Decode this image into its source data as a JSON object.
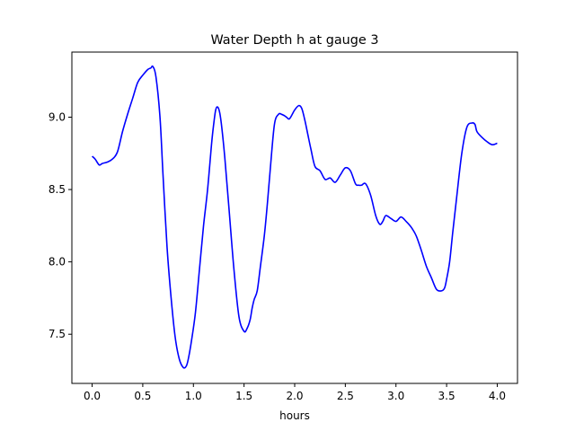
{
  "chart_data": {
    "type": "line",
    "title": "Water Depth h at gauge 3",
    "xlabel": "hours",
    "ylabel": "",
    "xlim": [
      -0.2,
      4.2
    ],
    "ylim": [
      7.16,
      9.45
    ],
    "xticks": [
      0.0,
      0.5,
      1.0,
      1.5,
      2.0,
      2.5,
      3.0,
      3.5,
      4.0
    ],
    "xtick_labels": [
      "0.0",
      "0.5",
      "1.0",
      "1.5",
      "2.0",
      "2.5",
      "3.0",
      "3.5",
      "4.0"
    ],
    "yticks": [
      7.5,
      8.0,
      8.5,
      9.0
    ],
    "ytick_labels": [
      "7.5",
      "8.0",
      "8.5",
      "9.0"
    ],
    "grid": false,
    "series": [
      {
        "color": "#0000ff",
        "x": [
          0.0,
          0.03,
          0.07,
          0.1,
          0.15,
          0.2,
          0.25,
          0.3,
          0.35,
          0.4,
          0.45,
          0.5,
          0.55,
          0.58,
          0.6,
          0.63,
          0.67,
          0.7,
          0.74,
          0.78,
          0.82,
          0.86,
          0.9,
          0.93,
          0.95,
          0.98,
          1.02,
          1.06,
          1.1,
          1.14,
          1.18,
          1.2,
          1.22,
          1.24,
          1.26,
          1.28,
          1.31,
          1.35,
          1.4,
          1.45,
          1.5,
          1.53,
          1.56,
          1.58,
          1.6,
          1.63,
          1.66,
          1.7,
          1.73,
          1.76,
          1.8,
          1.84,
          1.87,
          1.9,
          1.92,
          1.95,
          2.0,
          2.04,
          2.07,
          2.1,
          2.13,
          2.16,
          2.2,
          2.25,
          2.3,
          2.35,
          2.4,
          2.45,
          2.5,
          2.55,
          2.6,
          2.63,
          2.66,
          2.7,
          2.75,
          2.8,
          2.84,
          2.87,
          2.9,
          2.95,
          3.0,
          3.05,
          3.1,
          3.15,
          3.2,
          3.25,
          3.3,
          3.35,
          3.4,
          3.45,
          3.48,
          3.5,
          3.53,
          3.56,
          3.6,
          3.65,
          3.7,
          3.75,
          3.78,
          3.8,
          3.85,
          3.9,
          3.95,
          4.0
        ],
        "y": [
          8.73,
          8.71,
          8.67,
          8.68,
          8.69,
          8.71,
          8.76,
          8.9,
          9.02,
          9.13,
          9.24,
          9.29,
          9.33,
          9.34,
          9.35,
          9.28,
          9.0,
          8.6,
          8.1,
          7.75,
          7.48,
          7.33,
          7.27,
          7.28,
          7.33,
          7.45,
          7.65,
          7.95,
          8.25,
          8.5,
          8.82,
          8.95,
          9.05,
          9.07,
          9.03,
          8.93,
          8.72,
          8.38,
          7.95,
          7.62,
          7.52,
          7.54,
          7.6,
          7.68,
          7.74,
          7.8,
          7.96,
          8.18,
          8.4,
          8.65,
          8.95,
          9.02,
          9.02,
          9.01,
          9.0,
          8.99,
          9.05,
          9.08,
          9.06,
          8.98,
          8.88,
          8.78,
          8.66,
          8.63,
          8.57,
          8.58,
          8.55,
          8.6,
          8.65,
          8.63,
          8.54,
          8.53,
          8.53,
          8.54,
          8.46,
          8.32,
          8.26,
          8.28,
          8.32,
          8.3,
          8.28,
          8.31,
          8.28,
          8.24,
          8.18,
          8.08,
          7.97,
          7.89,
          7.81,
          7.8,
          7.82,
          7.88,
          8.0,
          8.2,
          8.45,
          8.75,
          8.93,
          8.96,
          8.95,
          8.9,
          8.86,
          8.83,
          8.81,
          8.82
        ]
      }
    ]
  }
}
